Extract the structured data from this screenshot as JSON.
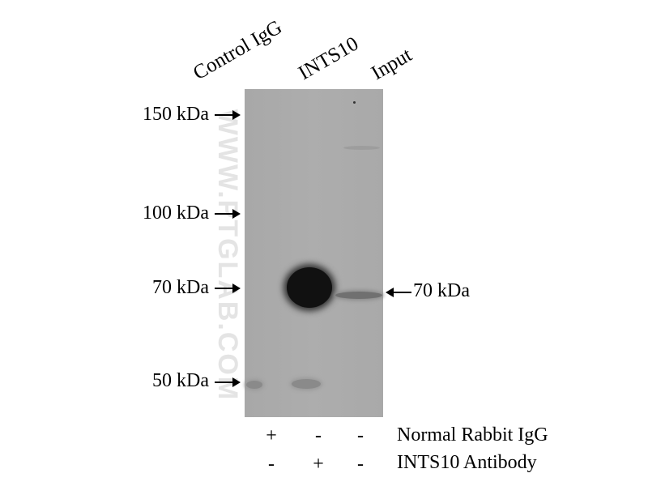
{
  "lanes": [
    "Control IgG",
    "INTS10",
    "Input"
  ],
  "markers": [
    "150 kDa",
    "100 kDa",
    "70 kDa",
    "50 kDa"
  ],
  "target_label": "70 kDa",
  "watermark": "WWW.PTGLAB.COM",
  "conditions": [
    {
      "label": "Normal Rabbit IgG",
      "signs": [
        "+",
        "-",
        "-"
      ]
    },
    {
      "label": "INTS10 Antibody",
      "signs": [
        "-",
        "+",
        "-"
      ]
    }
  ]
}
